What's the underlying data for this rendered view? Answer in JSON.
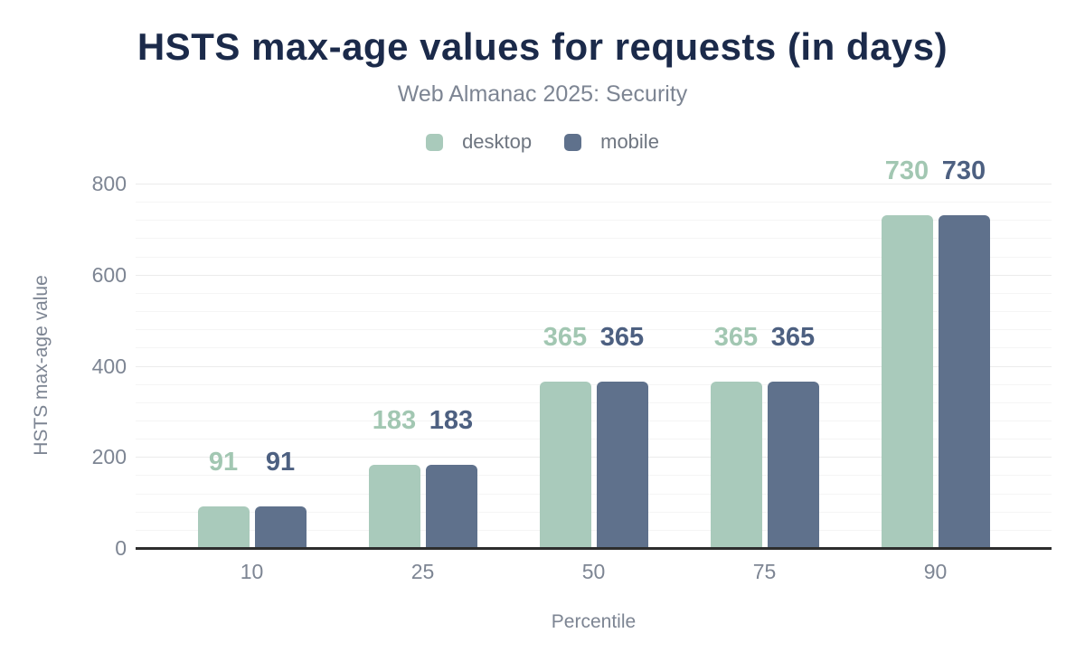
{
  "chart_data": {
    "type": "bar",
    "title": "HSTS max-age values for requests (in days)",
    "subtitle": "Web Almanac 2025: Security",
    "xlabel": "Percentile",
    "ylabel": "HSTS max-age value",
    "categories": [
      "10",
      "25",
      "50",
      "75",
      "90"
    ],
    "series": [
      {
        "name": "desktop",
        "color": "#a9cabb",
        "label_color": "#a2c7b2",
        "values": [
          91,
          183,
          365,
          365,
          730
        ]
      },
      {
        "name": "mobile",
        "color": "#5f718c",
        "label_color": "#4d6081",
        "values": [
          91,
          183,
          365,
          365,
          730
        ]
      }
    ],
    "ylim": [
      0,
      800
    ],
    "yticks": [
      0,
      200,
      400,
      600,
      800
    ],
    "minor_grid_step": 40,
    "grid": true,
    "legend_position": "top"
  },
  "colors": {
    "title_text": "#1b2a4a",
    "subtitle_text": "#7d8593",
    "axis_text": "#7d8593",
    "legend_text": "#6e7580",
    "axis_line": "#2d2d2d",
    "grid_major": "#ebebeb",
    "grid_minor": "#f5f5f5",
    "background": "#ffffff"
  }
}
